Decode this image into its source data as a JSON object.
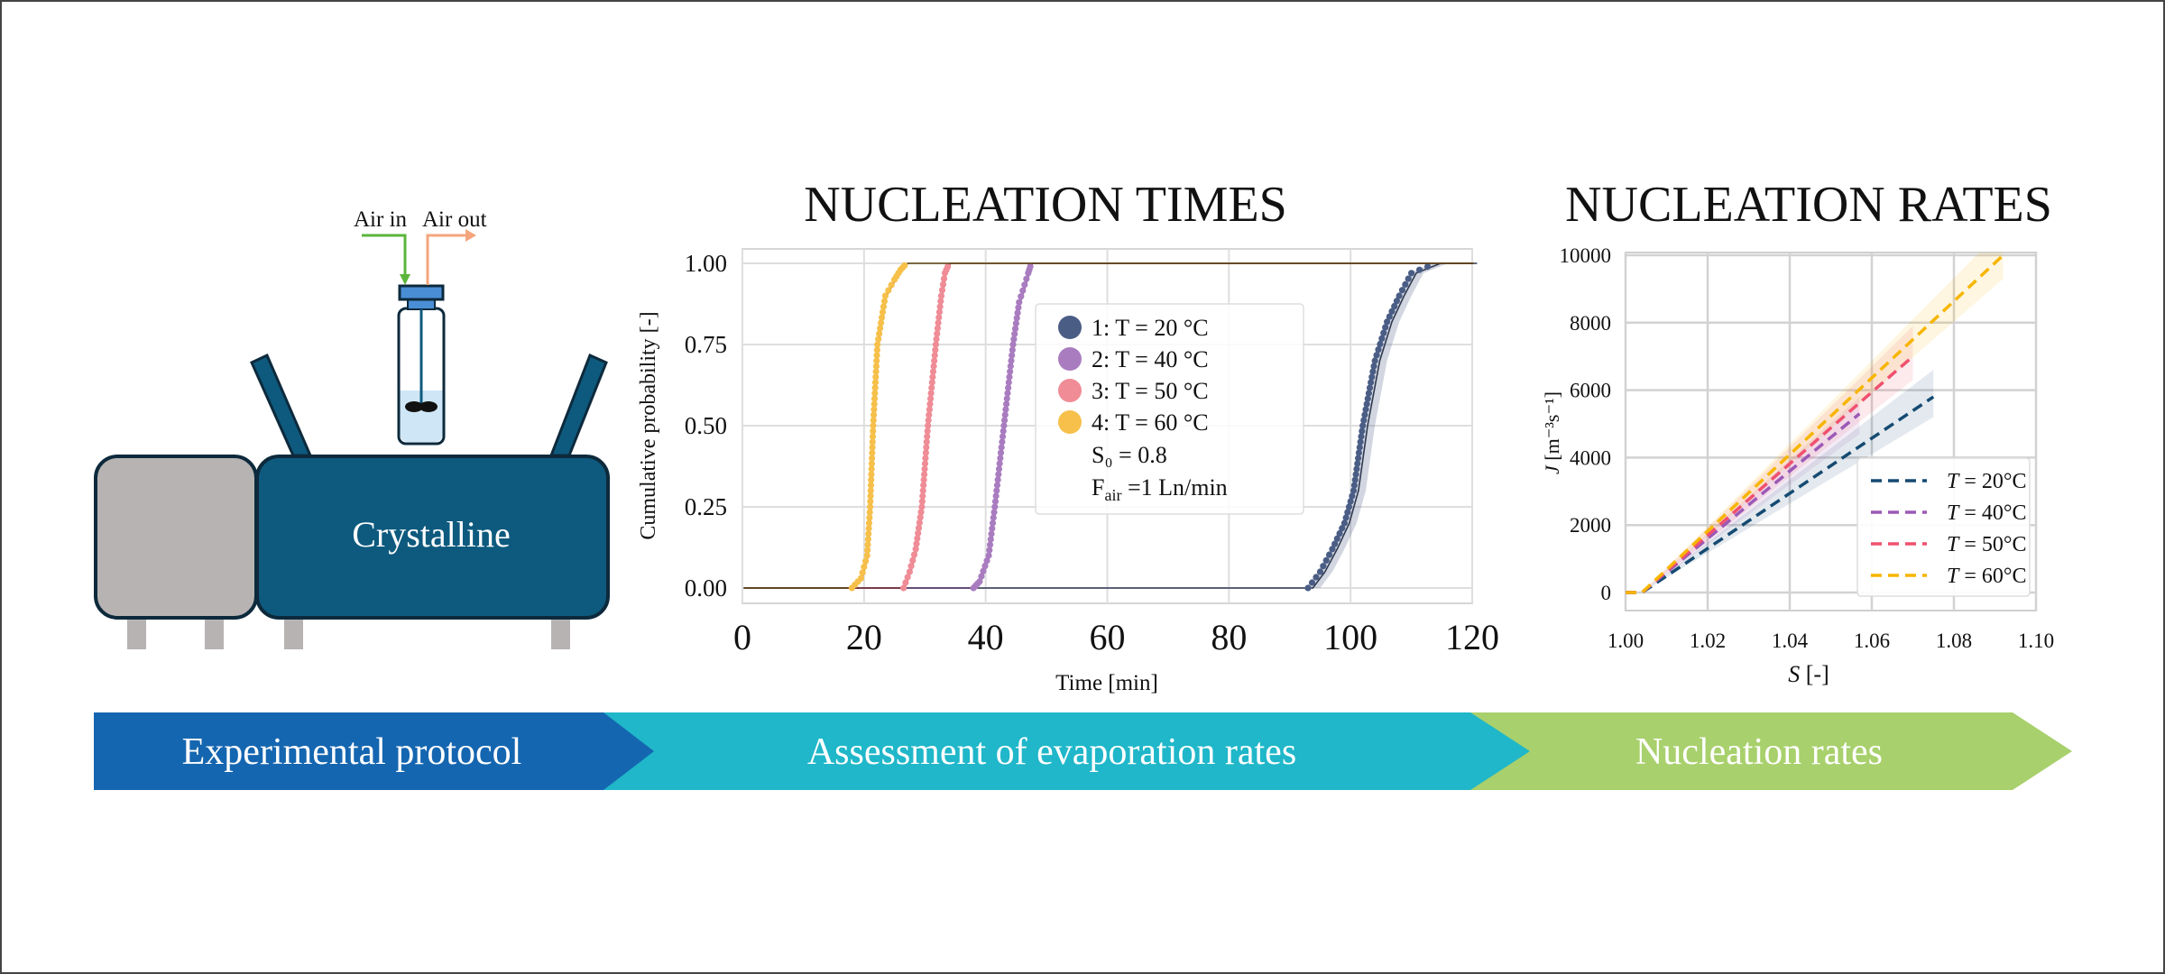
{
  "colors": {
    "frame": "#444444",
    "machine_grey": "#b7b3b2",
    "machine_blue": "#0e5a7e",
    "machine_outline": "#0d2a3c",
    "vial_cap": "#4a8fd6",
    "liquid": "#cfe6f6",
    "air_in": "#5bb53a",
    "air_out": "#f4a57c",
    "banner_1": "#1566b0",
    "banner_2": "#1fb7c9",
    "banner_3": "#a8d06c"
  },
  "diagram": {
    "air_in_label": "Air in",
    "air_out_label": "Air out",
    "device_label": "Crystalline"
  },
  "banner": {
    "steps": [
      "Experimental protocol",
      "Assessment of evaporation rates",
      "Nucleation rates"
    ]
  },
  "chart_data": [
    {
      "type": "scatter",
      "title": "NUCLEATION TIMES",
      "xlabel": "Time [min]",
      "ylabel": "Cumulative probability [-]",
      "xlim": [
        0,
        120
      ],
      "ylim": [
        0,
        1
      ],
      "xticks": [
        "0",
        "20",
        "40",
        "60",
        "80",
        "100",
        "120"
      ],
      "yticks": [
        "0.00",
        "0.25",
        "0.50",
        "0.75",
        "1.00"
      ],
      "grid": true,
      "legend_placement": "center",
      "legend_notes": {
        "s0": "S₀ = 0.8",
        "fair_prefix": "F",
        "fair_sub": "air",
        "fair_rest": " =1 Ln/min"
      },
      "series": [
        {
          "name": "1:  T = 20 °C",
          "color": "#4a5d85",
          "fit_color": "#2e3950",
          "band": true,
          "points": [
            [
              93,
              0
            ],
            [
              95,
              0.05
            ],
            [
              97,
              0.12
            ],
            [
              99,
              0.2
            ],
            [
              100.5,
              0.3
            ],
            [
              102,
              0.5
            ],
            [
              104,
              0.7
            ],
            [
              106,
              0.82
            ],
            [
              108,
              0.9
            ],
            [
              110,
              0.97
            ],
            [
              114,
              1.0
            ]
          ]
        },
        {
          "name": "2:  T = 40 °C",
          "color": "#a97cc0",
          "fit_color": "#5a3a6e",
          "band": false,
          "points": [
            [
              38,
              0
            ],
            [
              39,
              0.02
            ],
            [
              40.5,
              0.1
            ],
            [
              41.5,
              0.25
            ],
            [
              43,
              0.5
            ],
            [
              44.5,
              0.75
            ],
            [
              45.5,
              0.88
            ],
            [
              47,
              0.97
            ],
            [
              47.5,
              1.0
            ]
          ]
        },
        {
          "name": "3:  T = 50 °C",
          "color": "#ef8c96",
          "fit_color": "#7a2e36",
          "band": false,
          "points": [
            [
              26.5,
              0
            ],
            [
              27.5,
              0.05
            ],
            [
              28.5,
              0.12
            ],
            [
              29.5,
              0.25
            ],
            [
              30.5,
              0.5
            ],
            [
              31.8,
              0.75
            ],
            [
              32.7,
              0.9
            ],
            [
              33.3,
              0.97
            ],
            [
              34,
              1.0
            ]
          ]
        },
        {
          "name": "4:  T = 60 °C",
          "color": "#f6c04a",
          "fit_color": "#5a4410",
          "band": false,
          "points": [
            [
              18,
              0
            ],
            [
              19.5,
              0.03
            ],
            [
              20.5,
              0.1
            ],
            [
              21,
              0.25
            ],
            [
              21.5,
              0.5
            ],
            [
              22.2,
              0.75
            ],
            [
              23.5,
              0.9
            ],
            [
              25,
              0.95
            ],
            [
              26,
              0.98
            ],
            [
              27,
              1.0
            ]
          ]
        }
      ]
    },
    {
      "type": "line",
      "title": "NUCLEATION RATES",
      "xlabel_italic": "S",
      "xlabel_rest": " [-]",
      "ylabel_italic": "J",
      "ylabel_rest": " [m⁻³s⁻¹]",
      "xlim": [
        1.0,
        1.1
      ],
      "ylim": [
        0,
        10000
      ],
      "xticks": [
        "1.00",
        "1.02",
        "1.04",
        "1.06",
        "1.08",
        "1.10"
      ],
      "yticks": [
        "0",
        "2000",
        "4000",
        "6000",
        "8000",
        "10000"
      ],
      "grid": true,
      "legend_placement": "lower right",
      "series": [
        {
          "name_italic": "T",
          "name_rest": " = 20°C",
          "color": "#154a72",
          "points": [
            [
              1.0,
              0
            ],
            [
              1.004,
              0
            ],
            [
              1.075,
              5800
            ]
          ],
          "band_end": [
            5200,
            6600
          ]
        },
        {
          "name_italic": "T",
          "name_rest": " = 40°C",
          "color": "#9b59b6",
          "points": [
            [
              1.0,
              0
            ],
            [
              1.004,
              0
            ],
            [
              1.057,
              5300
            ]
          ],
          "band_end": [
            4700,
            5800
          ]
        },
        {
          "name_italic": "T",
          "name_rest": " = 50°C",
          "color": "#f0506e",
          "points": [
            [
              1.0,
              0
            ],
            [
              1.004,
              0
            ],
            [
              1.07,
              7000
            ]
          ],
          "band_end": [
            6300,
            7900
          ]
        },
        {
          "name_italic": "T",
          "name_rest": " = 60°C",
          "color": "#f7b500",
          "points": [
            [
              1.0,
              0
            ],
            [
              1.004,
              0
            ],
            [
              1.092,
              10000
            ]
          ],
          "band_end": [
            9300,
            10800
          ]
        }
      ]
    }
  ]
}
